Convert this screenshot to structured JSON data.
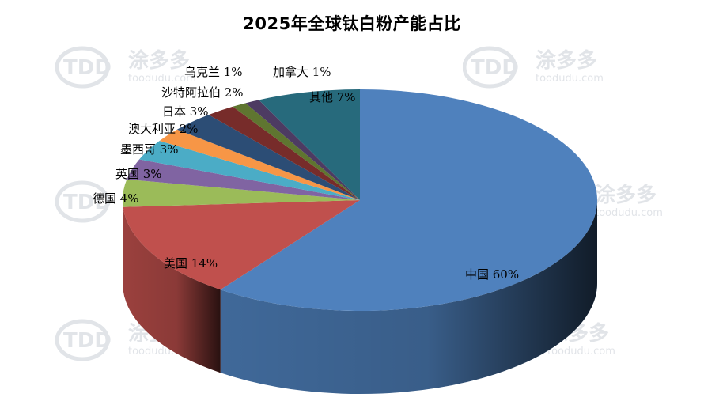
{
  "chart_data": {
    "type": "pie",
    "title": "2025年全球钛白粉产能占比",
    "slices": [
      {
        "label": "中国",
        "value": 60,
        "color": "#4f81bd",
        "value_label": "中国 60%"
      },
      {
        "label": "美国",
        "value": 14,
        "color": "#c0504d",
        "value_label": "美国 14%"
      },
      {
        "label": "德国",
        "value": 4,
        "color": "#9bbb59",
        "value_label": "德国 4%"
      },
      {
        "label": "英国",
        "value": 3,
        "color": "#8064a2",
        "value_label": "英国 3%"
      },
      {
        "label": "墨西哥",
        "value": 3,
        "color": "#4bacc6",
        "value_label": "墨西哥 3%"
      },
      {
        "label": "澳大利亚",
        "value": 2,
        "color": "#f79646",
        "value_label": "澳大利亚 2%"
      },
      {
        "label": "日本",
        "value": 3,
        "color": "#2c4d75",
        "value_label": "日本 3%"
      },
      {
        "label": "沙特阿拉伯",
        "value": 2,
        "color": "#772c2a",
        "value_label": "沙特阿拉伯 2%"
      },
      {
        "label": "乌克兰",
        "value": 1,
        "color": "#5f7530",
        "value_label": "乌克兰 1%"
      },
      {
        "label": "加拿大",
        "value": 1,
        "color": "#4d3b62",
        "value_label": "加拿大 1%"
      },
      {
        "label": "其他",
        "value": 7,
        "color": "#276a7c",
        "value_label": "其他 7%"
      }
    ],
    "legend": "none",
    "style": "3d"
  },
  "watermark": {
    "logo_text": "TDD",
    "brand_text": "涂多多",
    "url_text": "toodudu.com"
  }
}
